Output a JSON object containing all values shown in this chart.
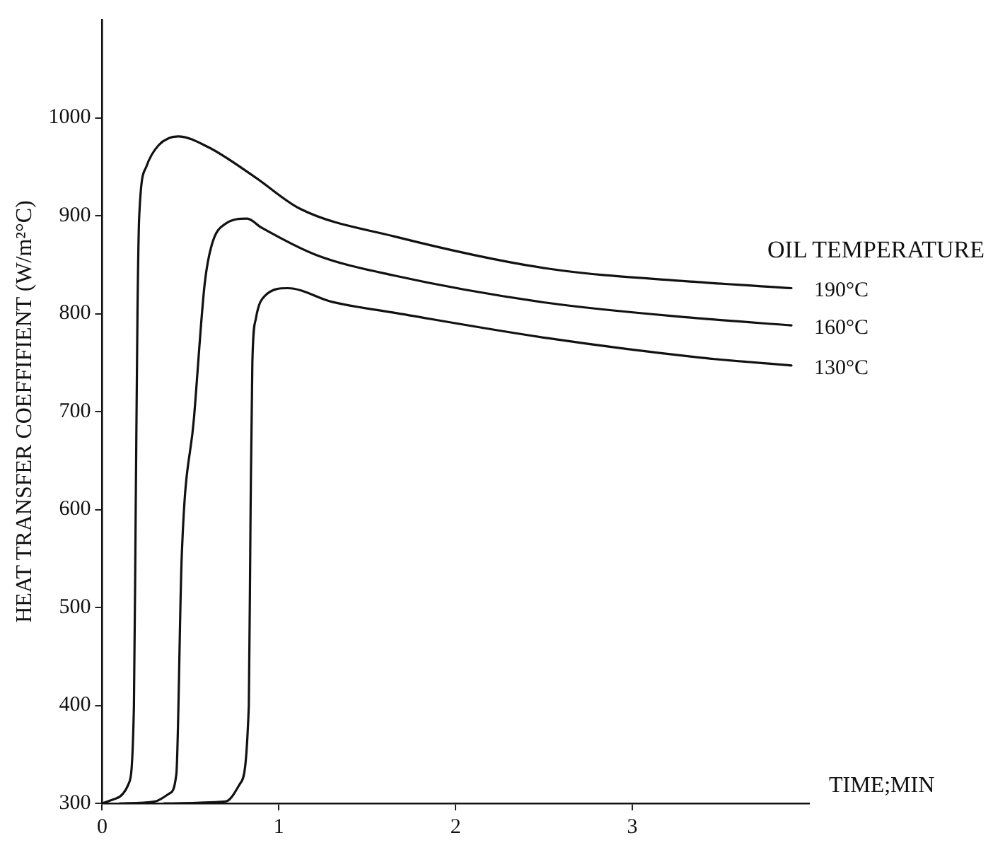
{
  "chart_data": {
    "type": "line",
    "xlabel": "TIME;MIN",
    "ylabel": "HEAT TRANSFER COEFFIFIENT (W/m²°C)",
    "legend_title": "OIL TEMPERATURE",
    "xlim": [
      0,
      4
    ],
    "ylim": [
      300,
      1100
    ],
    "xticks": [
      0,
      1,
      2,
      3
    ],
    "yticks": [
      300,
      400,
      500,
      600,
      700,
      800,
      900,
      1000
    ],
    "grid": false,
    "legend": false,
    "marker": "none",
    "line_style": "solid",
    "series": [
      {
        "name": "190°C",
        "color": "#111111",
        "x": [
          0,
          0.08,
          0.15,
          0.18,
          0.19,
          0.2,
          0.21,
          0.25,
          0.32,
          0.43,
          0.6,
          0.86,
          1.12,
          1.65,
          2.52,
          3.39,
          3.9
        ],
        "values": [
          300,
          305,
          320,
          400,
          600,
          800,
          900,
          950,
          972,
          981,
          970,
          940,
          907,
          879,
          846,
          832,
          826
        ]
      },
      {
        "name": "160°C",
        "color": "#111111",
        "x": [
          0.1,
          0.3,
          0.38,
          0.42,
          0.45,
          0.52,
          0.58,
          0.62,
          0.7,
          0.82,
          0.9,
          1.21,
          1.65,
          2.52,
          3.39,
          3.9
        ],
        "values": [
          300,
          302,
          310,
          330,
          550,
          694,
          830,
          870,
          892,
          897,
          888,
          860,
          839,
          811,
          795,
          788
        ]
      },
      {
        "name": "130°C",
        "color": "#111111",
        "x": [
          0.35,
          0.7,
          0.78,
          0.83,
          0.84,
          0.85,
          0.87,
          0.92,
          1.05,
          1.3,
          1.65,
          2.52,
          3.39,
          3.9
        ],
        "values": [
          300,
          302,
          320,
          400,
          600,
          750,
          795,
          818,
          826,
          812,
          801,
          775,
          755,
          747
        ]
      }
    ]
  }
}
